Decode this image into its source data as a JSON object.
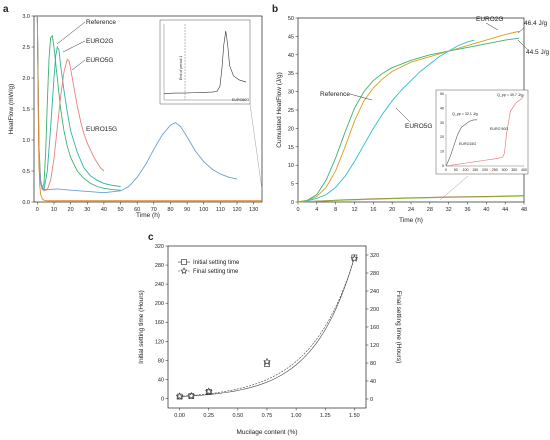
{
  "panels": {
    "a": "a",
    "b": "b",
    "c": "c"
  },
  "chart_data": [
    {
      "id": "a",
      "type": "line",
      "xlabel": "Time (h)",
      "ylabel": "HeatFlow (mW/g)",
      "xlim": [
        -2,
        135
      ],
      "ylim": [
        0,
        3.0
      ],
      "xticks": [
        "0",
        "10",
        "20",
        "30",
        "40",
        "50",
        "60",
        "70",
        "80",
        "90",
        "100",
        "110",
        "120",
        "130"
      ],
      "yticks": [
        "0.0",
        "0.5",
        "1.0",
        "1.5",
        "2.0",
        "2.5",
        "3.0"
      ],
      "series": [
        {
          "name": "Reference",
          "color": "#3cb371",
          "x": [
            0,
            1,
            2,
            3,
            4,
            5,
            6,
            7,
            8,
            9,
            10,
            12,
            14,
            16,
            18,
            20,
            24,
            28,
            32,
            36,
            40,
            45,
            50
          ],
          "y": [
            3.0,
            0.9,
            0.35,
            0.22,
            0.3,
            0.8,
            1.6,
            2.3,
            2.65,
            2.68,
            2.5,
            2.0,
            1.5,
            1.15,
            0.9,
            0.72,
            0.5,
            0.38,
            0.3,
            0.25,
            0.22,
            0.2,
            0.19
          ]
        },
        {
          "name": "EURO2G",
          "color": "#30b39a",
          "x": [
            0,
            1,
            2,
            3,
            4,
            6,
            8,
            10,
            11,
            12,
            13,
            14,
            16,
            18,
            20,
            24,
            28,
            32,
            36,
            40,
            45,
            50
          ],
          "y": [
            3.0,
            0.8,
            0.3,
            0.2,
            0.2,
            0.5,
            1.2,
            2.0,
            2.35,
            2.5,
            2.45,
            2.2,
            1.8,
            1.45,
            1.15,
            0.8,
            0.55,
            0.42,
            0.35,
            0.3,
            0.27,
            0.25
          ]
        },
        {
          "name": "EURO5G",
          "color": "#e88080",
          "x": [
            0,
            1,
            2,
            4,
            6,
            8,
            10,
            12,
            14,
            16,
            18,
            19,
            20,
            22,
            24,
            26,
            28,
            30,
            34,
            38,
            40
          ],
          "y": [
            3.0,
            0.8,
            0.3,
            0.18,
            0.2,
            0.35,
            0.7,
            1.2,
            1.7,
            2.1,
            2.3,
            2.28,
            2.15,
            1.85,
            1.55,
            1.3,
            1.1,
            0.95,
            0.72,
            0.55,
            0.5
          ]
        },
        {
          "name": "EURO15G",
          "color": "#6aa0d8",
          "x": [
            0,
            1,
            2,
            4,
            8,
            12,
            20,
            30,
            40,
            50,
            55,
            60,
            65,
            70,
            75,
            80,
            83,
            86,
            90,
            95,
            100,
            105,
            110,
            115,
            120
          ],
          "y": [
            3.0,
            0.6,
            0.3,
            0.2,
            0.2,
            0.21,
            0.19,
            0.17,
            0.15,
            0.18,
            0.25,
            0.4,
            0.6,
            0.85,
            1.08,
            1.24,
            1.28,
            1.22,
            1.05,
            0.82,
            0.65,
            0.53,
            0.45,
            0.4,
            0.37
          ]
        },
        {
          "name": "",
          "color": "#e08a1e",
          "x": [
            0,
            0.5,
            1,
            1.5,
            2,
            3,
            4,
            6,
            10,
            20,
            40,
            60,
            80,
            100,
            120,
            135
          ],
          "y": [
            3.0,
            1.6,
            0.6,
            0.25,
            0.12,
            0.05,
            0.03,
            0.02,
            0.02,
            0.02,
            0.02,
            0.02,
            0.02,
            0.02,
            0.02,
            0.02
          ]
        }
      ],
      "inset": {
        "series_label": "EURO50G",
        "note": "End of period 1",
        "y": [
          0.18,
          0.19,
          0.2,
          0.2,
          0.2,
          0.21,
          0.22,
          0.23,
          0.25,
          0.4,
          0.9,
          1.6,
          2.0,
          1.6,
          1.0,
          0.7,
          0.58,
          0.52
        ],
        "x": [
          0,
          5,
          10,
          15,
          20,
          30,
          40,
          50,
          55,
          58,
          60,
          62,
          64,
          66,
          68,
          72,
          78,
          85
        ]
      }
    },
    {
      "id": "b",
      "type": "line",
      "xlabel": "Time (h)",
      "ylabel": "Cumulated HeatFlow (J/g)",
      "xlim": [
        0,
        48
      ],
      "ylim": [
        0,
        50
      ],
      "xticks": [
        "0",
        "4",
        "8",
        "12",
        "16",
        "20",
        "24",
        "28",
        "32",
        "36",
        "40",
        "44",
        "48"
      ],
      "yticks": [
        "0",
        "5",
        "10",
        "15",
        "20",
        "25",
        "30",
        "35",
        "40",
        "45",
        "50"
      ],
      "annotations": {
        "euro2g_final": "46.4 J/g",
        "ref_final": "44.5 J/g"
      },
      "series": [
        {
          "name": "Reference",
          "color": "#3cb371",
          "x": [
            0,
            2,
            4,
            6,
            8,
            10,
            12,
            14,
            16,
            18,
            20,
            24,
            28,
            32,
            36,
            40,
            44,
            47
          ],
          "y": [
            0,
            0.5,
            2,
            6,
            12,
            19,
            25.5,
            30,
            33,
            35,
            36.5,
            38.5,
            40,
            41,
            42,
            43,
            44,
            44.5
          ]
        },
        {
          "name": "EURO2G",
          "color": "#d4a020",
          "x": [
            0,
            2,
            4,
            6,
            8,
            10,
            12,
            14,
            16,
            18,
            20,
            24,
            28,
            32,
            36,
            40,
            44,
            47
          ],
          "y": [
            0,
            0.4,
            1.5,
            4,
            8.5,
            15,
            22,
            27.5,
            31,
            33.5,
            35.5,
            38,
            39.5,
            41,
            42.5,
            44,
            45.5,
            46.4
          ]
        },
        {
          "name": "EURO5G",
          "color": "#2abfd0",
          "x": [
            0,
            2,
            4,
            6,
            8,
            10,
            12,
            14,
            16,
            18,
            20,
            22,
            24,
            26,
            28,
            30,
            32,
            34,
            36,
            37.5
          ],
          "y": [
            0,
            0.3,
            1,
            2,
            4,
            7,
            11,
            15.5,
            20,
            24,
            27.5,
            30.5,
            33,
            35.5,
            37.5,
            39.5,
            41,
            42.5,
            43.5,
            44
          ]
        },
        {
          "name": "",
          "color": "#a0522d",
          "x": [
            0,
            10,
            20,
            30,
            40,
            48
          ],
          "y": [
            0,
            0.6,
            1.0,
            1.3,
            1.5,
            1.7
          ]
        },
        {
          "name": "",
          "color": "#8fbf40",
          "x": [
            0,
            10,
            20,
            30,
            40,
            48
          ],
          "y": [
            0,
            0.5,
            0.9,
            1.2,
            1.4,
            1.6
          ]
        }
      ],
      "inset": {
        "labels": {
          "g1": "Q_pp = 32.1 J/g",
          "euro15": "EURO15G",
          "euro50": "EURO 50G",
          "g2": "Q_pp = 49.7 J/g"
        },
        "yticks": [
          "50",
          "40",
          "30",
          "20",
          "10",
          "0"
        ],
        "xticks": [
          "0",
          "50",
          "100",
          "150",
          "200",
          "250",
          "300",
          "350",
          "400"
        ]
      }
    },
    {
      "id": "c",
      "type": "scatter",
      "xlabel": "Mucilage content (%)",
      "ylabel": "Initial setting time (Hours)",
      "y2label": "Final setting time (Hours)",
      "xlim": [
        -0.1,
        1.6
      ],
      "ylim": [
        -20,
        320
      ],
      "y2lim": [
        -20,
        340
      ],
      "xticks": [
        "0.00",
        "0.25",
        "0.50",
        "0.75",
        "1.00",
        "1.25",
        "1.50"
      ],
      "yticks": [
        "0",
        "40",
        "80",
        "120",
        "160",
        "200",
        "240",
        "280",
        "320"
      ],
      "y2ticks": [
        "0",
        "40",
        "80",
        "120",
        "160",
        "200",
        "240",
        "280",
        "320"
      ],
      "legend": "top-left",
      "series": [
        {
          "name": "Initial setting time",
          "marker": "square",
          "dash": "solid",
          "x": [
            0,
            0.1,
            0.25,
            0.75,
            1.5
          ],
          "y": [
            4,
            5,
            14,
            72,
            296
          ]
        },
        {
          "name": "Final setting time",
          "marker": "star",
          "dash": "dashed",
          "x": [
            0,
            0.1,
            0.25,
            0.75,
            1.5
          ],
          "y": [
            6,
            7,
            17,
            83,
            312
          ]
        }
      ]
    }
  ]
}
